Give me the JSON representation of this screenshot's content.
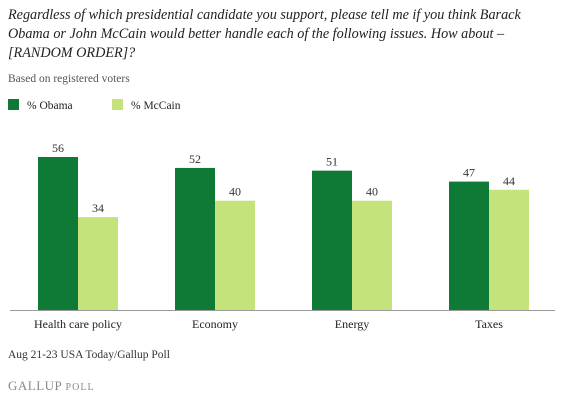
{
  "question": "Regardless of which presidential candidate you support, please tell me if you think Barack Obama or John McCain would better handle each of the following issues.  How about – [RANDOM ORDER]?",
  "subtitle": "Based on registered voters",
  "footer": "Aug 21-23 USA Today/Gallup Poll",
  "brand": {
    "main": "GALLUP",
    "suffix": "POLL"
  },
  "colors": {
    "obama": "#0f7a35",
    "mccain": "#c4e37a",
    "axis": "#999999"
  },
  "chart_data": {
    "type": "bar",
    "categories": [
      "Health care policy",
      "Economy",
      "Energy",
      "Taxes"
    ],
    "series": [
      {
        "name": "% Obama",
        "values": [
          56,
          52,
          51,
          47
        ]
      },
      {
        "name": "% McCain",
        "values": [
          34,
          40,
          40,
          44
        ]
      }
    ],
    "ylim": [
      0,
      56
    ],
    "grid": false,
    "legend": "top-left"
  }
}
